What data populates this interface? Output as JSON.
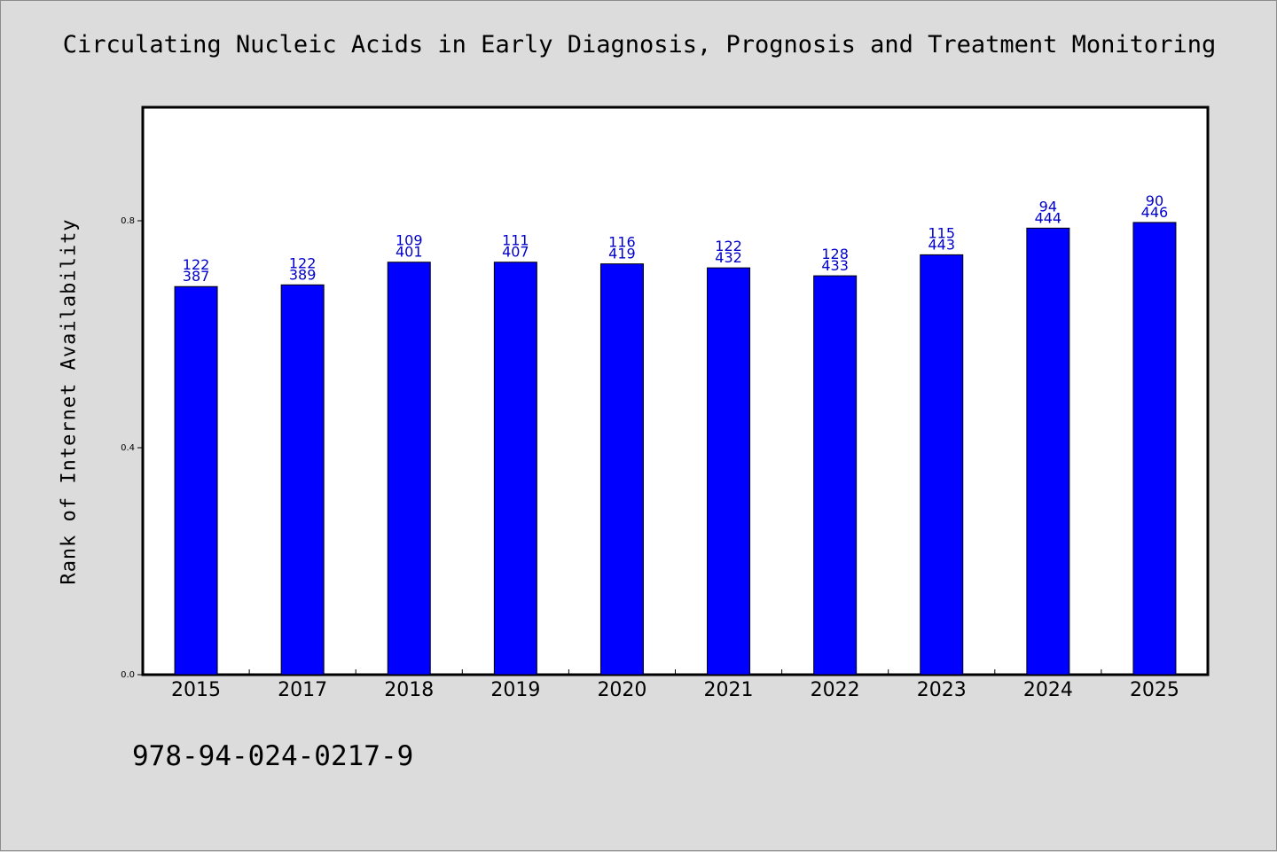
{
  "chart_data": {
    "type": "bar",
    "title": "Circulating Nucleic Acids in Early Diagnosis, Prognosis and Treatment Monitoring",
    "xlabel": "",
    "ylabel": "Rank of Internet Availability",
    "ylim": [
      0,
      1.0
    ],
    "yticks": [
      "0.0",
      "0.4",
      "0.8"
    ],
    "ytick_values": [
      0.0,
      0.4,
      0.8
    ],
    "categories": [
      "2015",
      "2017",
      "2018",
      "2019",
      "2020",
      "2021",
      "2022",
      "2023",
      "2024",
      "2025"
    ],
    "values": [
      0.684,
      0.687,
      0.727,
      0.727,
      0.724,
      0.717,
      0.703,
      0.74,
      0.787,
      0.797
    ],
    "label_top": [
      "122",
      "122",
      "109",
      "111",
      "116",
      "122",
      "128",
      "115",
      "94",
      "90"
    ],
    "label_bottom": [
      "387",
      "389",
      "401",
      "407",
      "419",
      "432",
      "433",
      "443",
      "444",
      "446"
    ],
    "bar_color": "#0000ff",
    "label_color": "#0000cc",
    "grid": false
  },
  "footer": {
    "isbn": "978-94-024-0217-9"
  }
}
